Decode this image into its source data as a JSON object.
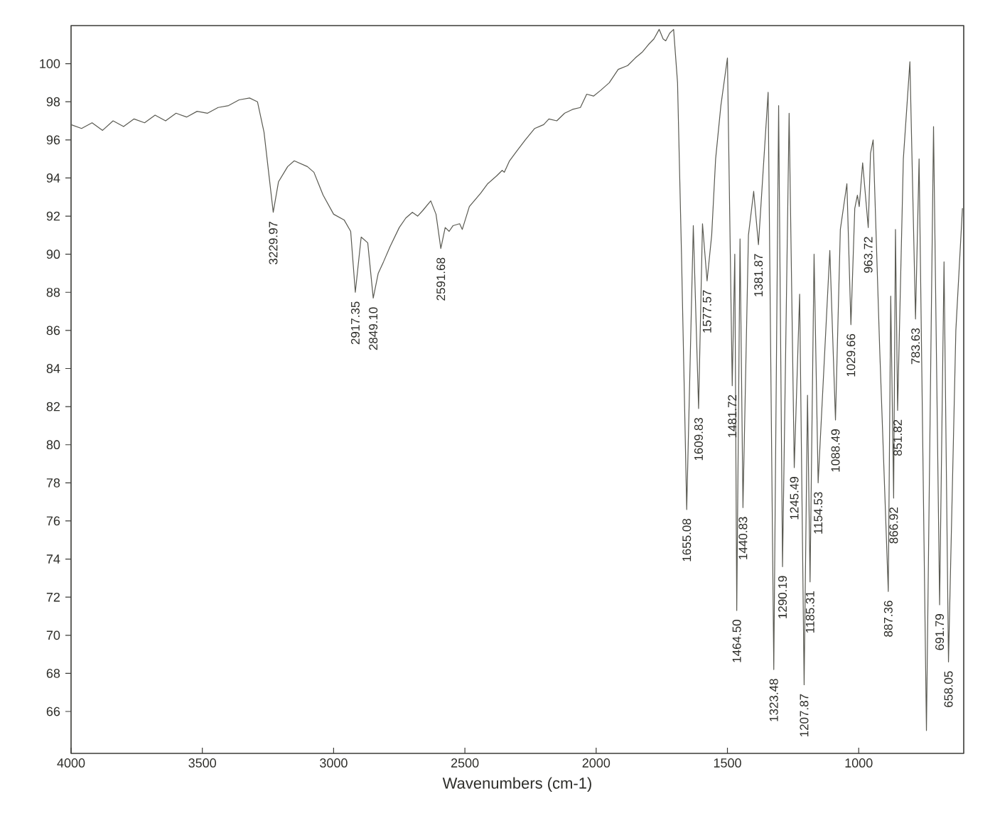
{
  "chart_data": {
    "type": "line",
    "xlabel": "Wavenumbers (cm-1)",
    "color": "#5a5a52",
    "xlim": [
      4000,
      600
    ],
    "ylim": [
      63.8,
      102
    ],
    "xticks": [
      4000,
      3500,
      3000,
      2500,
      2000,
      1500,
      1000
    ],
    "yticks": [
      66,
      68,
      70,
      72,
      74,
      76,
      78,
      80,
      82,
      84,
      86,
      88,
      90,
      92,
      94,
      96,
      98,
      100
    ],
    "x": [
      4000,
      3960,
      3920,
      3880,
      3840,
      3800,
      3760,
      3720,
      3680,
      3640,
      3600,
      3560,
      3520,
      3480,
      3440,
      3400,
      3360,
      3320,
      3290,
      3265,
      3245,
      3229.97,
      3210,
      3175,
      3150,
      3100,
      3075,
      3040,
      3000,
      2960,
      2935,
      2917.35,
      2895,
      2870,
      2849.1,
      2830,
      2810,
      2785,
      2750,
      2725,
      2700,
      2680,
      2660,
      2630,
      2610,
      2591.68,
      2575,
      2560,
      2545,
      2520,
      2510,
      2483,
      2440,
      2413,
      2380,
      2358,
      2350,
      2330,
      2303,
      2270,
      2234,
      2200,
      2180,
      2150,
      2120,
      2090,
      2060,
      2036,
      2010,
      1983,
      1950,
      1916,
      1880,
      1851,
      1825,
      1801,
      1780,
      1760,
      1745,
      1735,
      1720,
      1705,
      1690,
      1675,
      1655.08,
      1630,
      1609.83,
      1595,
      1577.57,
      1560,
      1545,
      1525,
      1500,
      1481.72,
      1472,
      1464.5,
      1452,
      1440.83,
      1420,
      1400,
      1381.87,
      1345,
      1323.48,
      1305,
      1290.19,
      1265,
      1245.49,
      1225,
      1207.87,
      1195,
      1185.31,
      1170,
      1154.53,
      1110,
      1088.49,
      1070,
      1045,
      1029.66,
      1015,
      1005,
      998,
      985,
      963.72,
      955,
      945,
      920,
      887.36,
      878,
      866.92,
      860,
      851.82,
      830,
      805,
      783.63,
      770,
      742,
      715,
      691.79,
      675,
      658.05,
      630,
      605
    ],
    "values": [
      96.8,
      96.6,
      96.9,
      96.5,
      97.0,
      96.7,
      97.1,
      96.9,
      97.3,
      97.0,
      97.4,
      97.2,
      97.5,
      97.4,
      97.7,
      97.8,
      98.1,
      98.2,
      98.0,
      96.4,
      94.0,
      92.2,
      93.8,
      94.6,
      94.9,
      94.6,
      94.3,
      93.1,
      92.1,
      91.8,
      91.2,
      88.0,
      90.9,
      90.6,
      87.7,
      89.0,
      89.6,
      90.4,
      91.4,
      91.9,
      92.2,
      92.0,
      92.3,
      92.8,
      92.1,
      90.3,
      91.4,
      91.2,
      91.5,
      91.6,
      91.3,
      92.5,
      93.2,
      93.7,
      94.1,
      94.4,
      94.3,
      94.9,
      95.4,
      96.0,
      96.6,
      96.8,
      97.1,
      97.0,
      97.4,
      97.6,
      97.7,
      98.4,
      98.3,
      98.6,
      99.0,
      99.7,
      99.9,
      100.3,
      100.6,
      101.0,
      101.3,
      101.8,
      101.3,
      101.2,
      101.6,
      101.8,
      99.0,
      90.0,
      76.6,
      91.5,
      81.9,
      91.6,
      88.6,
      91.0,
      95.0,
      97.8,
      100.3,
      83.1,
      90.0,
      71.3,
      90.8,
      76.7,
      91.0,
      93.3,
      90.5,
      98.5,
      68.2,
      97.8,
      73.6,
      97.4,
      78.8,
      87.9,
      67.4,
      82.6,
      72.8,
      90.0,
      78.0,
      90.2,
      81.3,
      91.3,
      93.7,
      86.3,
      92.4,
      93.1,
      92.5,
      94.8,
      91.4,
      95.3,
      96.0,
      85.0,
      72.3,
      87.8,
      77.2,
      91.3,
      81.8,
      95.0,
      100.1,
      86.6,
      95.0,
      65.0,
      96.7,
      71.6,
      89.6,
      68.6,
      86.0,
      92.4
    ],
    "annotations": [
      {
        "text": "3229.97",
        "x": 3229.97,
        "y": 92.2
      },
      {
        "text": "2917.35",
        "x": 2917.35,
        "y": 88.0
      },
      {
        "text": "2849.10",
        "x": 2849.1,
        "y": 87.7
      },
      {
        "text": "2591.68",
        "x": 2591.68,
        "y": 90.3
      },
      {
        "text": "1655.08",
        "x": 1655.08,
        "y": 76.6
      },
      {
        "text": "1609.83",
        "x": 1609.83,
        "y": 81.9
      },
      {
        "text": "1577.57",
        "x": 1577.57,
        "y": 88.6
      },
      {
        "text": "1481.72",
        "x": 1481.72,
        "y": 83.1
      },
      {
        "text": "1464.50",
        "x": 1464.5,
        "y": 71.3
      },
      {
        "text": "1440.83",
        "x": 1440.83,
        "y": 76.7
      },
      {
        "text": "1381.87",
        "x": 1381.87,
        "y": 90.5
      },
      {
        "text": "1323.48",
        "x": 1323.48,
        "y": 68.2
      },
      {
        "text": "1290.19",
        "x": 1290.19,
        "y": 73.6
      },
      {
        "text": "1245.49",
        "x": 1245.49,
        "y": 78.8
      },
      {
        "text": "1207.87",
        "x": 1207.87,
        "y": 67.4
      },
      {
        "text": "1185.31",
        "x": 1185.31,
        "y": 72.8
      },
      {
        "text": "1154.53",
        "x": 1154.53,
        "y": 78.0
      },
      {
        "text": "1088.49",
        "x": 1088.49,
        "y": 81.3
      },
      {
        "text": "1029.66",
        "x": 1029.66,
        "y": 86.3
      },
      {
        "text": "963.72",
        "x": 963.72,
        "y": 91.4
      },
      {
        "text": "887.36",
        "x": 887.36,
        "y": 72.3
      },
      {
        "text": "866.92",
        "x": 866.92,
        "y": 77.2
      },
      {
        "text": "851.82",
        "x": 851.82,
        "y": 81.8
      },
      {
        "text": "783.63",
        "x": 783.63,
        "y": 86.6
      },
      {
        "text": "691.79",
        "x": 691.79,
        "y": 71.6
      },
      {
        "text": "658.05",
        "x": 658.05,
        "y": 68.6
      }
    ]
  }
}
